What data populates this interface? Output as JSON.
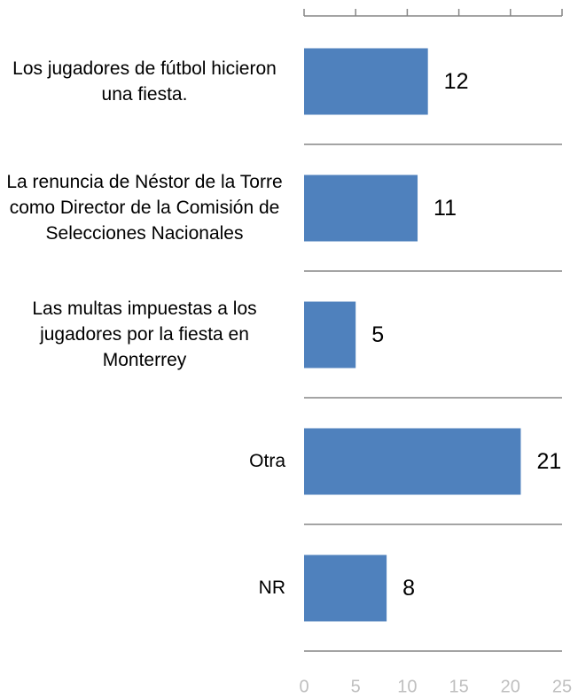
{
  "chart_data": {
    "type": "bar",
    "orientation": "horizontal",
    "categories": [
      "Los jugadores de fútbol hicieron una fiesta.",
      "La renuncia de Néstor de la Torre como Director de la Comisión de Selecciones Nacionales",
      "Las multas impuestas a los jugadores por la fiesta en Monterrey",
      "Otra",
      "NR"
    ],
    "values": [
      12,
      11,
      5,
      21,
      8
    ],
    "color": "#4f81bd",
    "xlim": [
      0,
      25
    ],
    "xticks": [
      0,
      5,
      10,
      15,
      20,
      25
    ]
  }
}
